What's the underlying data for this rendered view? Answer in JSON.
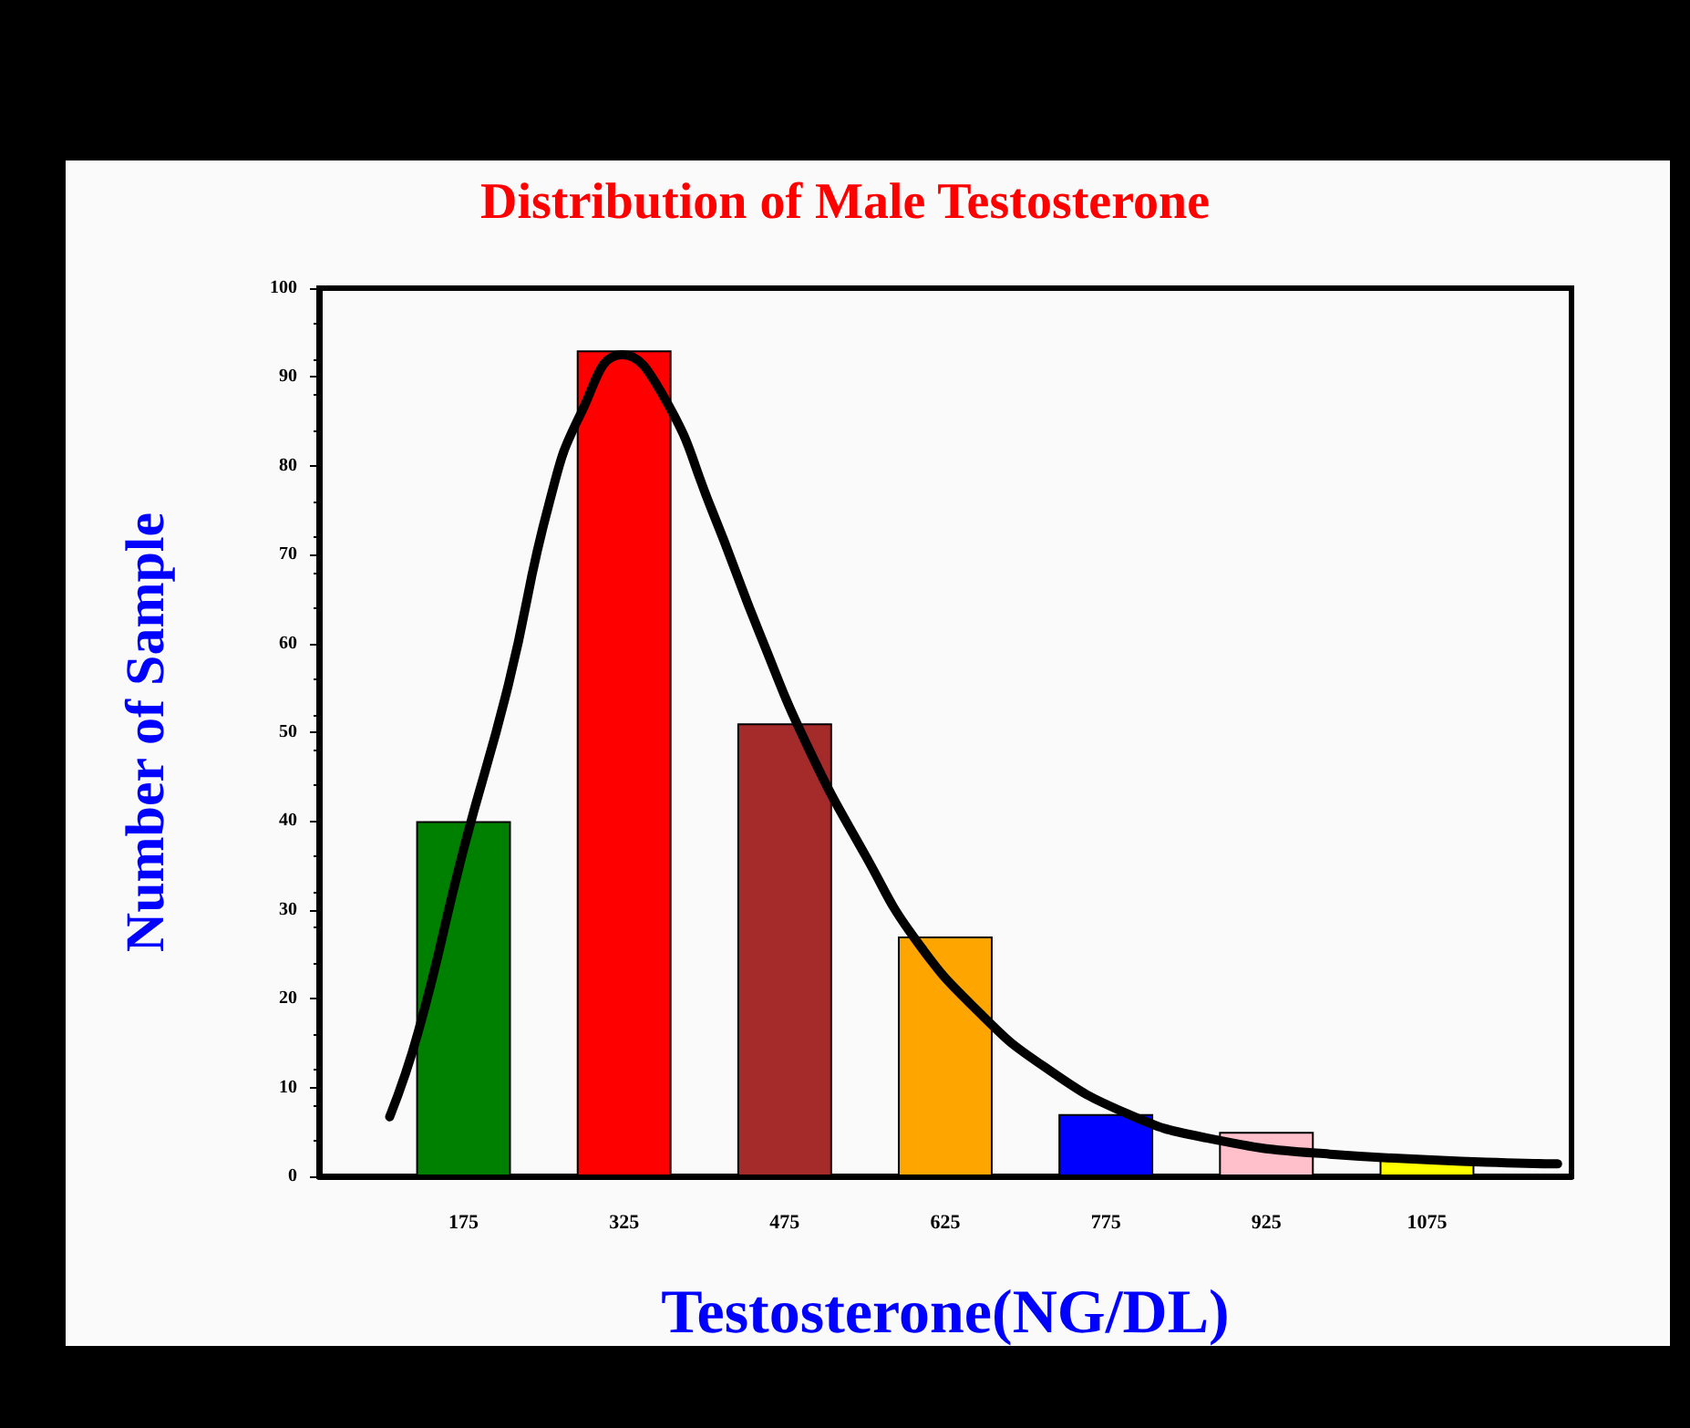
{
  "chart_data": {
    "type": "bar",
    "title": "Distribution of Male Testosterone",
    "xlabel": "Testosterone(NG/DL)",
    "ylabel": "Number of Sample",
    "x": [
      175,
      325,
      475,
      625,
      775,
      925,
      1075
    ],
    "values": [
      40,
      93,
      51,
      27,
      7,
      5,
      2
    ],
    "colors": [
      "#008000",
      "#ff0000",
      "#a52a2a",
      "#ffa500",
      "#0000ff",
      "#ffc0cb",
      "#ffff00"
    ],
    "series": [
      {
        "type": "line",
        "color": "#000000",
        "x": [
          106,
          133,
          175,
          217,
          255,
          285,
          323,
          361,
          407,
          452,
          498,
          551,
          597,
          658,
          718,
          794,
          870,
          984,
          1197
        ],
        "values": [
          6.7,
          16.4,
          36.8,
          55.4,
          75.8,
          86,
          92.5,
          88,
          75,
          61,
          48,
          36,
          26.7,
          18.3,
          12.3,
          7.1,
          4.3,
          2.5,
          1.4
        ]
      }
    ],
    "xlim": [
      40,
      1210
    ],
    "xticks": [
      175,
      325,
      475,
      625,
      775,
      925,
      {
        "value": 1075,
        "label": "1075"
      }
    ],
    "ylim": [
      0,
      100
    ],
    "yticks": [
      0,
      10,
      20,
      30,
      40,
      50,
      60,
      70,
      80,
      90,
      100
    ],
    "grid": false,
    "marker": "none",
    "line_style": "solid"
  }
}
